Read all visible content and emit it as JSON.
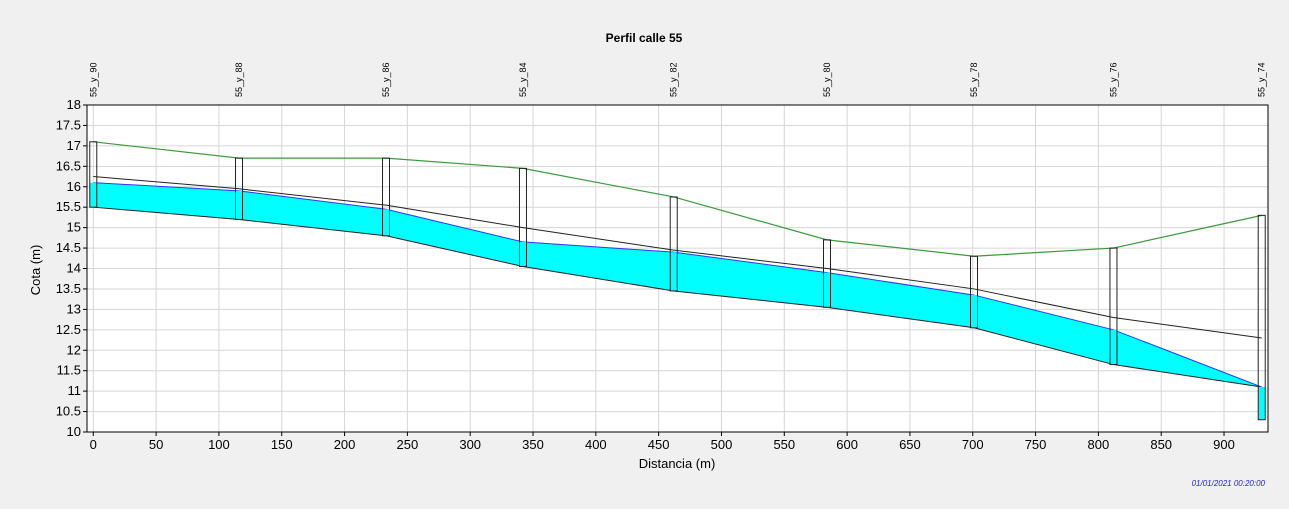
{
  "chart_data": {
    "type": "line",
    "title": "Perfil calle 55",
    "xlabel": "Distancia (m)",
    "ylabel": "Cota (m)",
    "xlim": [
      -5,
      935
    ],
    "ylim": [
      10,
      18
    ],
    "x_ticks": [
      0,
      50,
      100,
      150,
      200,
      250,
      300,
      350,
      400,
      450,
      500,
      550,
      600,
      650,
      700,
      750,
      800,
      850,
      900
    ],
    "y_ticks": [
      10,
      10.5,
      11,
      11.5,
      12,
      12.5,
      13,
      13.5,
      14,
      14.5,
      15,
      15.5,
      16,
      16.5,
      17,
      17.5,
      18
    ],
    "grid": true,
    "timestamp": "01/01/2021 00:20:00",
    "colors": {
      "ground": "#3c9a3c",
      "pipe": "#222222",
      "water_fill": "#00ffff",
      "water_line": "#3333ff",
      "background": "#f0f0f0",
      "plot_bg": "#ffffff",
      "grid": "#d6d6d6",
      "timestamp": "#2222cc"
    },
    "nodes": [
      {
        "name": "55_y_90",
        "x": 0,
        "ground": 17.1,
        "crown": 16.25,
        "water": 16.1,
        "invert": 15.5
      },
      {
        "name": "55_y_88",
        "x": 116,
        "ground": 16.7,
        "crown": 15.95,
        "water": 15.9,
        "invert": 15.2
      },
      {
        "name": "55_y_86",
        "x": 233,
        "ground": 16.7,
        "crown": 15.55,
        "water": 15.45,
        "invert": 14.8
      },
      {
        "name": "55_y_84",
        "x": 342,
        "ground": 16.45,
        "crown": 15.0,
        "water": 14.65,
        "invert": 14.05
      },
      {
        "name": "55_y_82",
        "x": 462,
        "ground": 15.75,
        "crown": 14.45,
        "water": 14.4,
        "invert": 13.45
      },
      {
        "name": "55_y_80",
        "x": 584,
        "ground": 14.7,
        "crown": 14.0,
        "water": 13.9,
        "invert": 13.05
      },
      {
        "name": "55_y_78",
        "x": 701,
        "ground": 14.3,
        "crown": 13.5,
        "water": 13.35,
        "invert": 12.55
      },
      {
        "name": "55_y_76",
        "x": 812,
        "ground": 14.5,
        "crown": 12.8,
        "water": 12.5,
        "invert": 11.65
      },
      {
        "name": "55_y_74",
        "x": 930,
        "ground": 15.3,
        "crown": 12.3,
        "water": 11.1,
        "invert": 10.3
      }
    ],
    "pipe_outlet_invert": 11.1
  }
}
